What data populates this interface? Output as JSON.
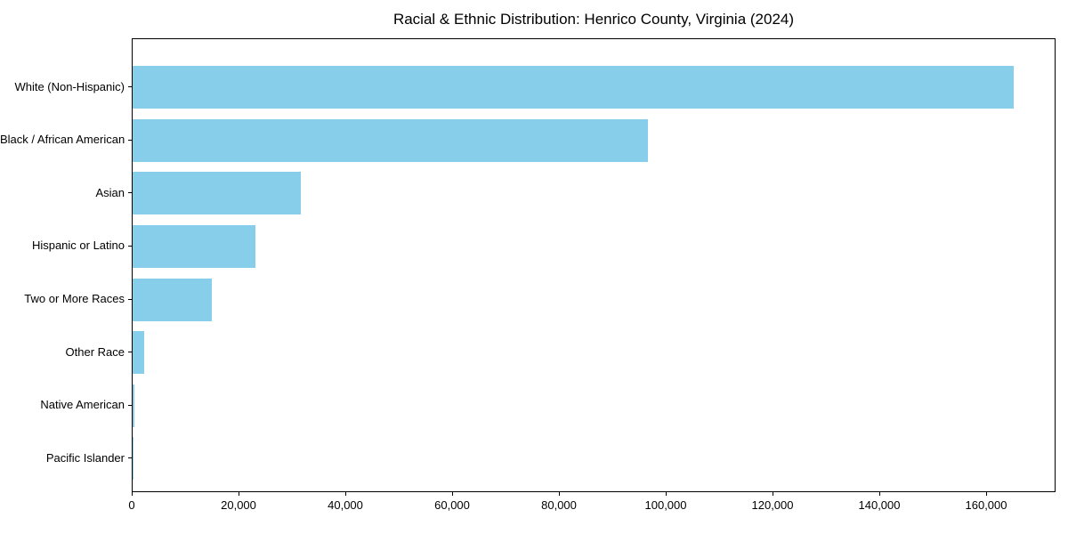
{
  "figure": {
    "background_color": "#FFFFFF"
  },
  "chart_data": {
    "type": "bar",
    "orientation": "horizontal",
    "title": "Racial & Ethnic Distribution: Henrico County, Virginia (2024)",
    "xlabel": "",
    "ylabel": "",
    "categories": [
      "White (Non-Hispanic)",
      "Black / African American",
      "Asian",
      "Hispanic or Latino",
      "Two or More Races",
      "Other Race",
      "Native American",
      "Pacific Islander"
    ],
    "values": [
      165000,
      96500,
      31500,
      23000,
      14800,
      2100,
      400,
      150
    ],
    "xlim": [
      0,
      173000
    ],
    "xticks": [
      0,
      20000,
      40000,
      60000,
      80000,
      100000,
      120000,
      140000,
      160000
    ],
    "xtick_labels": [
      "0",
      "20,000",
      "40,000",
      "60,000",
      "80,000",
      "100,000",
      "120,000",
      "140,000",
      "160,000"
    ],
    "grid": false,
    "legend_position": "none",
    "bar_color": "#87CEEB",
    "axis_color": "#000000",
    "text_color": "#000000"
  }
}
